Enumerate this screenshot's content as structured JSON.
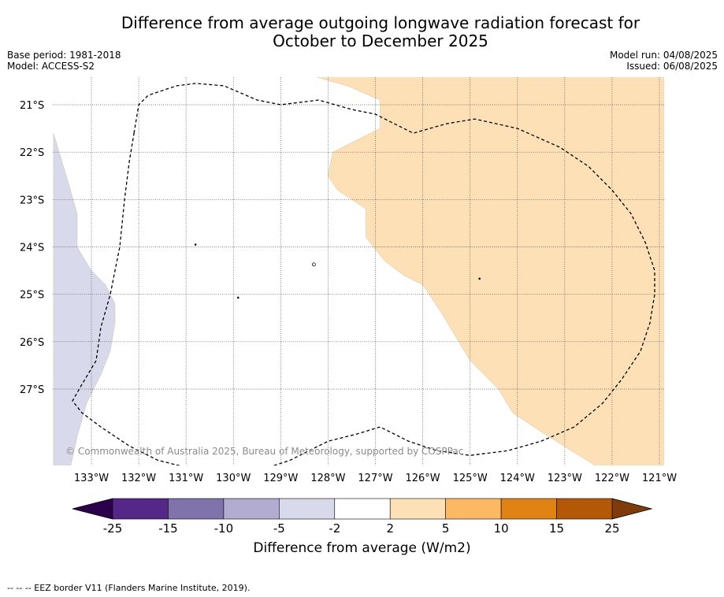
{
  "title_line1": "Difference from average outgoing longwave radiation forecast for",
  "title_line2": "October to December 2025",
  "base_period": "Base period: 1981-2018",
  "model": "Model: ACCESS-S2",
  "model_run": "Model run: 04/08/2025",
  "issued": "Issued: 06/08/2025",
  "copyright": "© Commonwealth of Australia 2025, Bureau of Meteorology, supported by COSPPac",
  "footer_note": "--  --  -- EEZ border V11 (Flanders Marine Institute, 2019).",
  "colorbar": {
    "title": "Difference from average (W/m2)",
    "tick_labels": [
      "-25",
      "-15",
      "-10",
      "-5",
      "-2",
      "2",
      "5",
      "10",
      "15",
      "25"
    ],
    "under_color": "#2d004b",
    "over_color": "#7f3b08",
    "colors": [
      "#542788",
      "#8073ac",
      "#b2abd2",
      "#d8daeb",
      "#ffffff",
      "#fee0b6",
      "#fdb863",
      "#e08214",
      "#b35806"
    ]
  },
  "map": {
    "lat_ticks": [
      -21,
      -22,
      -23,
      -24,
      -25,
      -26,
      -27
    ],
    "lat_labels": [
      "21°S",
      "22°S",
      "23°S",
      "24°S",
      "25°S",
      "26°S",
      "27°S"
    ],
    "lon_ticks": [
      -133,
      -132,
      -131,
      -130,
      -129,
      -128,
      -127,
      -126,
      -125,
      -124,
      -123,
      -122,
      -121
    ],
    "lon_labels": [
      "133°W",
      "132°W",
      "131°W",
      "130°W",
      "129°W",
      "128°W",
      "127°W",
      "126°W",
      "125°W",
      "124°W",
      "123°W",
      "122°W",
      "121°W"
    ],
    "extent": {
      "lon_min": -133.8,
      "lon_max": -120.9,
      "lat_min": -28.9,
      "lat_max": -20.4
    },
    "regions": [
      {
        "name": "positive-anomaly-region",
        "class": "2 to 5",
        "color": "#fee0b6",
        "lonlat": [
          [
            -128.3,
            -20.4
          ],
          [
            -120.9,
            -20.4
          ],
          [
            -120.9,
            -28.9
          ],
          [
            -121.9,
            -28.9
          ],
          [
            -123.5,
            -27.9
          ],
          [
            -124.1,
            -27.5
          ],
          [
            -124.4,
            -27.0
          ],
          [
            -125.0,
            -26.4
          ],
          [
            -125.6,
            -25.4
          ],
          [
            -126.0,
            -24.8
          ],
          [
            -126.4,
            -24.6
          ],
          [
            -126.8,
            -24.3
          ],
          [
            -127.2,
            -23.8
          ],
          [
            -127.2,
            -23.2
          ],
          [
            -127.8,
            -22.8
          ],
          [
            -128.0,
            -22.5
          ],
          [
            -127.9,
            -22.0
          ],
          [
            -126.9,
            -21.5
          ],
          [
            -126.9,
            -20.9
          ],
          [
            -127.6,
            -20.6
          ]
        ]
      },
      {
        "name": "negative-anomaly-region",
        "class": "-5 to -2",
        "color": "#d8daeb",
        "lonlat": [
          [
            -133.8,
            -21.6
          ],
          [
            -133.5,
            -22.6
          ],
          [
            -133.3,
            -23.3
          ],
          [
            -133.3,
            -24.0
          ],
          [
            -133.0,
            -24.5
          ],
          [
            -132.7,
            -24.8
          ],
          [
            -132.5,
            -25.2
          ],
          [
            -132.5,
            -25.6
          ],
          [
            -132.6,
            -26.2
          ],
          [
            -132.8,
            -26.7
          ],
          [
            -133.1,
            -27.3
          ],
          [
            -133.3,
            -28.0
          ],
          [
            -133.5,
            -28.9
          ],
          [
            -133.8,
            -28.9
          ]
        ]
      }
    ],
    "eez_border": [
      [
        -132.1,
        -21.6
      ],
      [
        -132.0,
        -21.0
      ],
      [
        -131.8,
        -20.8
      ],
      [
        -131.2,
        -20.6
      ],
      [
        -130.8,
        -20.55
      ],
      [
        -130.2,
        -20.6
      ],
      [
        -129.5,
        -20.9
      ],
      [
        -129.0,
        -21.0
      ],
      [
        -128.2,
        -20.9
      ],
      [
        -127.5,
        -21.1
      ],
      [
        -127.0,
        -21.2
      ],
      [
        -126.6,
        -21.4
      ],
      [
        -126.2,
        -21.6
      ],
      [
        -125.5,
        -21.4
      ],
      [
        -124.9,
        -21.3
      ],
      [
        -124.0,
        -21.5
      ],
      [
        -123.1,
        -21.9
      ],
      [
        -122.5,
        -22.3
      ],
      [
        -122.0,
        -22.8
      ],
      [
        -121.6,
        -23.3
      ],
      [
        -121.3,
        -23.9
      ],
      [
        -121.1,
        -24.5
      ],
      [
        -121.1,
        -25.0
      ],
      [
        -121.2,
        -25.6
      ],
      [
        -121.4,
        -26.2
      ],
      [
        -121.8,
        -26.8
      ],
      [
        -122.2,
        -27.3
      ],
      [
        -122.8,
        -27.8
      ],
      [
        -123.5,
        -28.1
      ],
      [
        -124.2,
        -28.3
      ],
      [
        -125.0,
        -28.4
      ],
      [
        -125.7,
        -28.3
      ],
      [
        -126.3,
        -28.1
      ],
      [
        -126.9,
        -27.8
      ],
      [
        -127.4,
        -27.95
      ],
      [
        -128.0,
        -28.1
      ],
      [
        -128.4,
        -28.3
      ],
      [
        -128.8,
        -28.5
      ],
      [
        -129.4,
        -28.7
      ],
      [
        -130.0,
        -28.8
      ],
      [
        -130.8,
        -28.7
      ],
      [
        -131.6,
        -28.5
      ],
      [
        -132.2,
        -28.2
      ],
      [
        -132.8,
        -27.8
      ],
      [
        -133.2,
        -27.5
      ],
      [
        -133.4,
        -27.25
      ],
      [
        -133.2,
        -26.9
      ],
      [
        -132.9,
        -26.4
      ],
      [
        -132.8,
        -25.7
      ],
      [
        -132.6,
        -25.0
      ],
      [
        -132.4,
        -24.0
      ],
      [
        -132.3,
        -23.0
      ],
      [
        -132.2,
        -22.2
      ],
      [
        -132.1,
        -21.6
      ]
    ],
    "islands": [
      {
        "name": "island-a",
        "lon": -130.8,
        "lat": -23.95
      },
      {
        "name": "island-b",
        "lon": -129.9,
        "lat": -25.07
      },
      {
        "name": "island-c",
        "lon": -128.3,
        "lat": -24.37
      },
      {
        "name": "island-d",
        "lon": -124.8,
        "lat": -24.67
      }
    ]
  }
}
